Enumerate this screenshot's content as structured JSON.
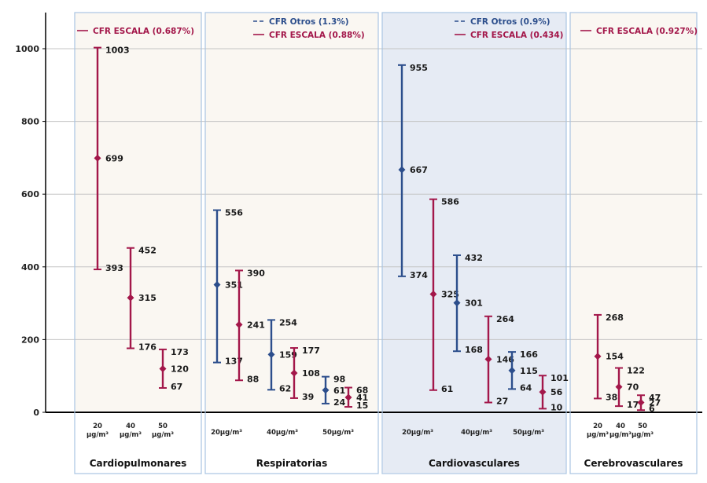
{
  "chart_data": {
    "type": "errorbar",
    "y_axis": {
      "ylim": [
        0,
        1000
      ],
      "ticks": [
        "0",
        "200",
        "400",
        "600",
        "800",
        "1000"
      ],
      "grid": true
    },
    "colors": {
      "escala": "#a3174a",
      "otros": "#2c4e8c",
      "panel_bg": "#faf7f2",
      "panel_bg_highlight": "#e6ebf4",
      "panel_border": "#a9c4e2"
    },
    "panels": [
      {
        "title": "Cardiopulmonares",
        "legend": [
          {
            "series": "escala",
            "label": "CFR ESCALA (0.687%)"
          }
        ],
        "points": [
          {
            "series": "escala",
            "x_label": [
              "20",
              "µg/m³"
            ],
            "low": 393,
            "mid": 699,
            "high": 1003,
            "low_label": "393",
            "mid_label": "699",
            "high_label": "1003"
          },
          {
            "series": "escala",
            "x_label": [
              "40",
              "µg/m³"
            ],
            "low": 176,
            "mid": 315,
            "high": 452,
            "low_label": "176",
            "mid_label": "315",
            "high_label": "452"
          },
          {
            "series": "escala",
            "x_label": [
              "50",
              "µg/m³"
            ],
            "low": 67,
            "mid": 120,
            "high": 173,
            "low_label": "67",
            "mid_label": "120",
            "high_label": "173"
          }
        ]
      },
      {
        "title": "Respiratorias",
        "legend": [
          {
            "series": "otros",
            "label": "CFR Otros (1.3%)"
          },
          {
            "series": "escala",
            "label": "CFR ESCALA (0.88%)"
          }
        ],
        "points": [
          {
            "series": "otros",
            "x_label": [
              "20µg/m³"
            ],
            "low": 137,
            "mid": 351,
            "high": 556,
            "low_label": "137",
            "mid_label": "351",
            "high_label": "556"
          },
          {
            "series": "escala",
            "low": 88,
            "mid": 241,
            "high": 390,
            "low_label": "88",
            "mid_label": "241",
            "high_label": "390"
          },
          {
            "series": "otros",
            "x_label": [
              "40µg/m³"
            ],
            "low": 62,
            "mid": 159,
            "high": 254,
            "low_label": "62",
            "mid_label": "159",
            "high_label": "254"
          },
          {
            "series": "escala",
            "low": 39,
            "mid": 108,
            "high": 177,
            "low_label": "39",
            "mid_label": "108",
            "high_label": "177"
          },
          {
            "series": "otros",
            "x_label": [
              "50µg/m³"
            ],
            "low": 24,
            "mid": 61,
            "high": 98,
            "low_label": "24",
            "mid_label": "61",
            "high_label": "98"
          },
          {
            "series": "escala",
            "low": 15,
            "mid": 41,
            "high": 68,
            "low_label": "15",
            "mid_label": "41",
            "high_label": "68"
          }
        ]
      },
      {
        "title": "Cardiovasculares",
        "legend": [
          {
            "series": "otros",
            "label": "CFR Otros (0.9%)"
          },
          {
            "series": "escala",
            "label": "CFR ESCALA (0.434)"
          }
        ],
        "points": [
          {
            "series": "otros",
            "x_label": [
              "20µg/m³"
            ],
            "low": 374,
            "mid": 667,
            "high": 955,
            "low_label": "374",
            "mid_label": "667",
            "high_label": "955"
          },
          {
            "series": "escala",
            "low": 61,
            "mid": 325,
            "high": 586,
            "low_label": "61",
            "mid_label": "325",
            "high_label": "586"
          },
          {
            "series": "otros",
            "x_label": [
              "40µg/m³"
            ],
            "low": 168,
            "mid": 301,
            "high": 432,
            "low_label": "168",
            "mid_label": "301",
            "high_label": "432"
          },
          {
            "series": "escala",
            "low": 27,
            "mid": 146,
            "high": 264,
            "low_label": "27",
            "mid_label": "146",
            "high_label": "264"
          },
          {
            "series": "otros",
            "x_label": [
              "50µg/m³"
            ],
            "low": 64,
            "mid": 115,
            "high": 166,
            "low_label": "64",
            "mid_label": "115",
            "high_label": "166"
          },
          {
            "series": "escala",
            "low": 10,
            "mid": 56,
            "high": 101,
            "low_label": "10",
            "mid_label": "56",
            "high_label": "101"
          }
        ]
      },
      {
        "title": "Cerebrovasculares",
        "legend": [
          {
            "series": "escala",
            "label": "CFR ESCALA (0.927%)"
          }
        ],
        "points": [
          {
            "series": "escala",
            "x_label": [
              "20",
              "µg/m³"
            ],
            "low": 38,
            "mid": 154,
            "high": 268,
            "low_label": "38",
            "mid_label": "154",
            "high_label": "268"
          },
          {
            "series": "escala",
            "x_label": [
              "40",
              "µg/m³"
            ],
            "low": 17,
            "mid": 70,
            "high": 122,
            "low_label": "17",
            "mid_label": "70",
            "high_label": "122"
          },
          {
            "series": "escala",
            "x_label": [
              "50",
              "µg/m³"
            ],
            "low": 6,
            "mid": 27,
            "high": 47,
            "low_label": "6",
            "mid_label": "27",
            "high_label": "47"
          }
        ]
      }
    ]
  }
}
